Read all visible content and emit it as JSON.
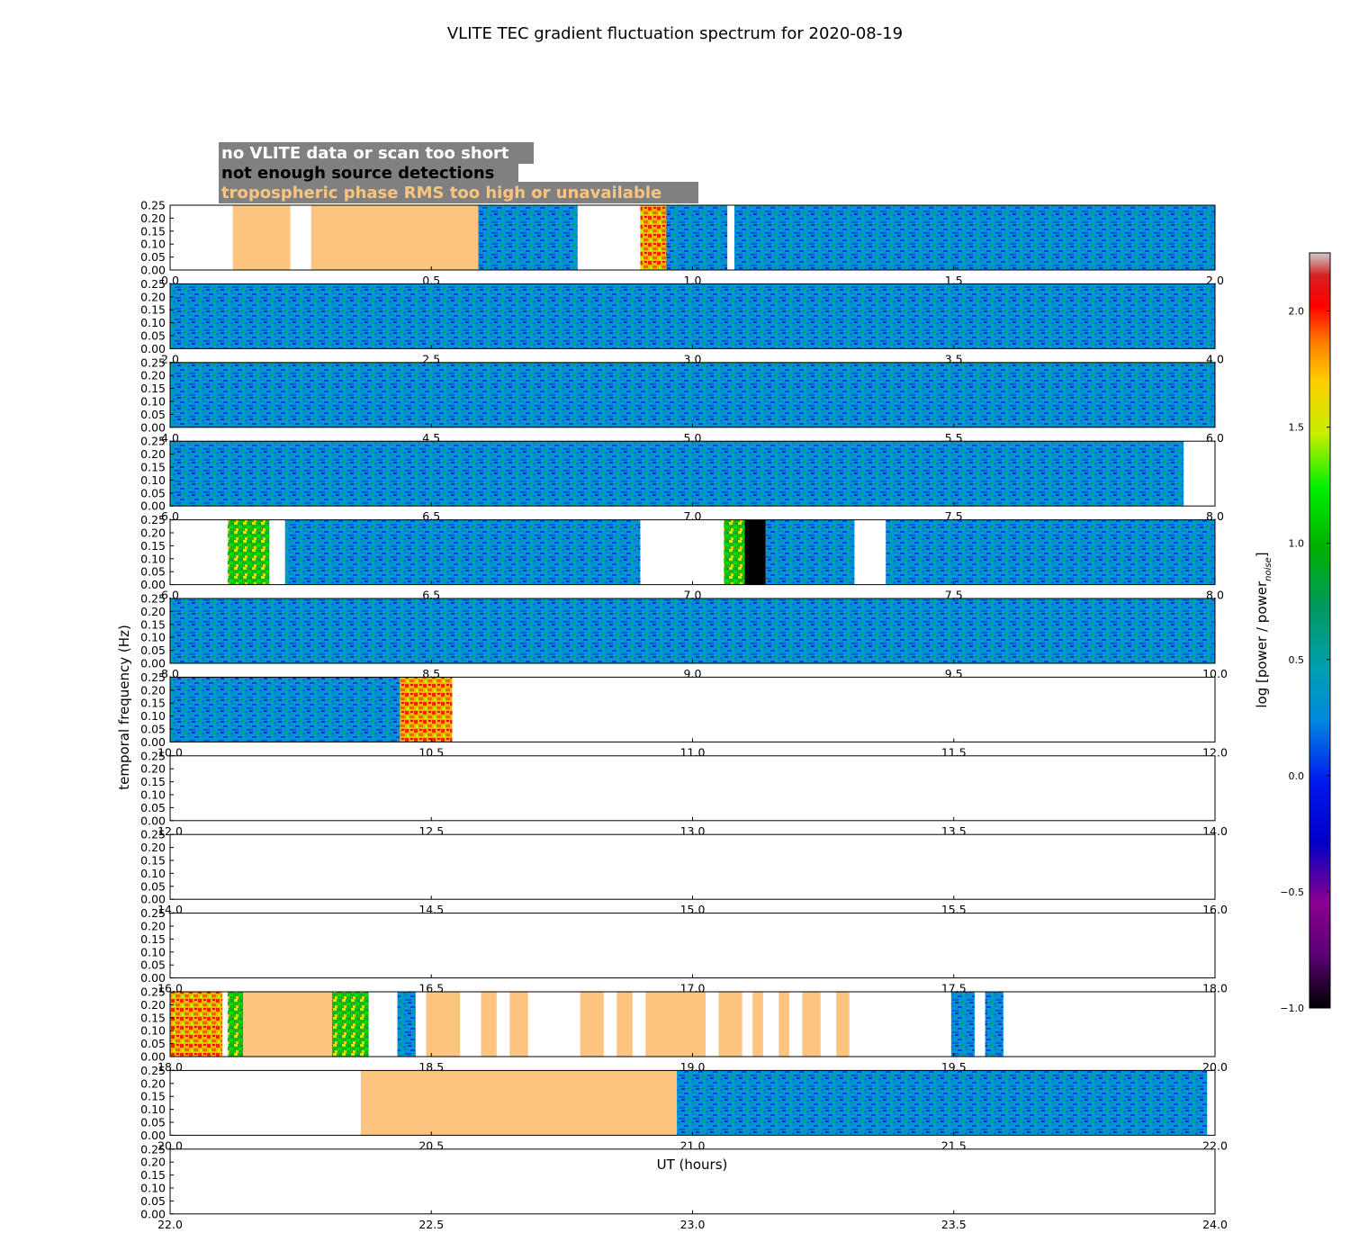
{
  "chart_data": {
    "type": "heatmap",
    "title": "VLITE TEC gradient fluctuation spectrum for 2020-08-19",
    "xlabel": "UT (hours)",
    "ylabel": "temporal frequency (Hz)",
    "ylim": [
      0.0,
      0.25
    ],
    "yticks": [
      "0.00",
      "0.05",
      "0.10",
      "0.15",
      "0.20",
      "0.25"
    ],
    "colorbar": {
      "label": "log [power / power",
      "label_subscript": "noise",
      "label_close": "]",
      "range": [
        -1.0,
        2.25
      ],
      "ticks": [
        "−1.0",
        "−0.5",
        "0.0",
        "0.5",
        "1.0",
        "1.5",
        "2.0"
      ],
      "tick_values": [
        -1.0,
        -0.5,
        0.0,
        0.5,
        1.0,
        1.5,
        2.0
      ]
    },
    "legend": [
      {
        "text": "no VLITE data or scan too short",
        "text_color": "#ffffff",
        "bg": "#808080"
      },
      {
        "text": "not enough source detections",
        "text_color": "#000000",
        "bg": "#808080"
      },
      {
        "text": "tropospheric phase RMS too high or unavailable",
        "text_color": "#fdc47f",
        "bg": "#808080"
      }
    ],
    "colors": {
      "flag_troposphere": "#fdc47f",
      "flag_nodetect": "#000000",
      "divider": "#ffffff"
    },
    "panels": [
      {
        "xrange": [
          0,
          2
        ],
        "xticks": [
          "0.0",
          "0.5",
          "1.0",
          "1.5",
          "2.0"
        ],
        "segments": [
          {
            "start": 0.12,
            "end": 0.23,
            "kind": "tropo"
          },
          {
            "start": 0.27,
            "end": 0.59,
            "kind": "tropo"
          },
          {
            "start": 0.59,
            "end": 0.78,
            "kind": "data"
          },
          {
            "start": 0.9,
            "end": 0.95,
            "kind": "hot"
          },
          {
            "start": 0.95,
            "end": 1.07,
            "kind": "data"
          },
          {
            "start": 1.08,
            "end": 2.0,
            "kind": "data"
          }
        ],
        "dividers": [
          1.07
        ]
      },
      {
        "xrange": [
          2,
          4
        ],
        "xticks": [
          "2.0",
          "2.5",
          "3.0",
          "3.5",
          "4.0"
        ],
        "segments": [
          {
            "start": 2.0,
            "end": 4.0,
            "kind": "data"
          }
        ],
        "dividers": []
      },
      {
        "xrange": [
          4,
          6
        ],
        "xticks": [
          "4.0",
          "4.5",
          "5.0",
          "5.5",
          "6.0"
        ],
        "segments": [
          {
            "start": 4.0,
            "end": 6.0,
            "kind": "data"
          }
        ],
        "dividers": []
      },
      {
        "xrange": [
          6,
          8
        ],
        "xticks": [
          "6.0",
          "6.5",
          "7.0",
          "7.5",
          "8.0"
        ],
        "segments": [
          {
            "start": 6.0,
            "end": 7.94,
            "kind": "data"
          }
        ],
        "dividers": []
      },
      {
        "xrange": [
          6,
          8
        ],
        "xticks": [
          "6.0",
          "6.5",
          "7.0",
          "7.5",
          "8.0"
        ],
        "segments": [
          {
            "start": 6.11,
            "end": 6.19,
            "kind": "warm"
          },
          {
            "start": 6.22,
            "end": 6.9,
            "kind": "data"
          },
          {
            "start": 7.06,
            "end": 7.1,
            "kind": "warm"
          },
          {
            "start": 7.1,
            "end": 7.14,
            "kind": "nodetect"
          },
          {
            "start": 7.14,
            "end": 7.31,
            "kind": "data"
          },
          {
            "start": 7.37,
            "end": 8.0,
            "kind": "data"
          }
        ],
        "dividers": []
      },
      {
        "xrange": [
          8,
          10
        ],
        "xticks": [
          "8.0",
          "8.5",
          "9.0",
          "9.5",
          "10.0"
        ],
        "segments": [
          {
            "start": 8.0,
            "end": 10.0,
            "kind": "data"
          }
        ],
        "dividers": []
      },
      {
        "xrange": [
          10,
          12
        ],
        "xticks": [
          "10.0",
          "10.5",
          "11.0",
          "11.5",
          "12.0"
        ],
        "segments": [
          {
            "start": 10.0,
            "end": 10.44,
            "kind": "data"
          },
          {
            "start": 10.44,
            "end": 10.54,
            "kind": "hot"
          }
        ],
        "dividers": []
      },
      {
        "xrange": [
          12,
          14
        ],
        "xticks": [
          "12.0",
          "12.5",
          "13.0",
          "13.5",
          "14.0"
        ],
        "segments": [],
        "dividers": []
      },
      {
        "xrange": [
          14,
          16
        ],
        "xticks": [
          "14.0",
          "14.5",
          "15.0",
          "15.5",
          "16.0"
        ],
        "segments": [],
        "dividers": []
      },
      {
        "xrange": [
          16,
          18
        ],
        "xticks": [
          "16.0",
          "16.5",
          "17.0",
          "17.5",
          "18.0"
        ],
        "segments": [],
        "dividers": []
      },
      {
        "xrange": [
          18,
          20
        ],
        "xticks": [
          "18.0",
          "18.5",
          "19.0",
          "19.5",
          "20.0"
        ],
        "segments": [
          {
            "start": 18.0,
            "end": 18.1,
            "kind": "hot"
          },
          {
            "start": 18.11,
            "end": 18.14,
            "kind": "warm"
          },
          {
            "start": 18.14,
            "end": 18.31,
            "kind": "tropo"
          },
          {
            "start": 18.31,
            "end": 18.38,
            "kind": "warm"
          },
          {
            "start": 18.435,
            "end": 18.47,
            "kind": "data"
          },
          {
            "start": 18.49,
            "end": 18.555,
            "kind": "tropo"
          },
          {
            "start": 18.595,
            "end": 18.625,
            "kind": "tropo"
          },
          {
            "start": 18.65,
            "end": 18.685,
            "kind": "tropo"
          },
          {
            "start": 18.785,
            "end": 18.83,
            "kind": "tropo"
          },
          {
            "start": 18.855,
            "end": 18.885,
            "kind": "tropo"
          },
          {
            "start": 18.91,
            "end": 19.025,
            "kind": "tropo"
          },
          {
            "start": 19.05,
            "end": 19.095,
            "kind": "tropo"
          },
          {
            "start": 19.115,
            "end": 19.135,
            "kind": "tropo"
          },
          {
            "start": 19.165,
            "end": 19.185,
            "kind": "tropo"
          },
          {
            "start": 19.21,
            "end": 19.245,
            "kind": "tropo"
          },
          {
            "start": 19.275,
            "end": 19.3,
            "kind": "tropo"
          },
          {
            "start": 19.495,
            "end": 19.54,
            "kind": "data"
          },
          {
            "start": 19.56,
            "end": 19.595,
            "kind": "data"
          }
        ],
        "dividers": []
      },
      {
        "xrange": [
          20,
          22
        ],
        "xticks": [
          "20.0",
          "20.5",
          "21.0",
          "21.5",
          "22.0"
        ],
        "segments": [
          {
            "start": 20.365,
            "end": 20.97,
            "kind": "tropo"
          },
          {
            "start": 20.97,
            "end": 21.985,
            "kind": "data"
          }
        ],
        "dividers": []
      },
      {
        "xrange": [
          22,
          24
        ],
        "xticks": [
          "22.0",
          "22.5",
          "23.0",
          "23.5",
          "24.0"
        ],
        "segments": [],
        "dividers": []
      }
    ]
  }
}
